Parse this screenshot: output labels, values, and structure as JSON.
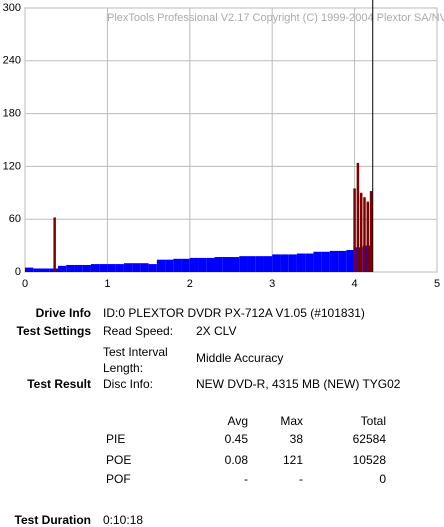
{
  "chart_data": {
    "type": "bar",
    "watermark": "PlexTools Professional V2.17 Copyright (C) 1999-2004 Plextor SA/NV",
    "xlim": [
      0,
      5
    ],
    "xticks": [
      0,
      1,
      2,
      3,
      4,
      5
    ],
    "ylim": [
      0,
      300
    ],
    "yticks": [
      0,
      60,
      120,
      180,
      240,
      300
    ],
    "grid": true,
    "end_line_x": 4.22,
    "series": [
      {
        "color": "#0000ff",
        "x": [
          0.05,
          0.15,
          0.25,
          0.35,
          0.45,
          0.55,
          0.65,
          0.75,
          0.85,
          0.95,
          1.05,
          1.15,
          1.25,
          1.35,
          1.45,
          1.55,
          1.65,
          1.75,
          1.85,
          1.95,
          2.05,
          2.15,
          2.25,
          2.35,
          2.45,
          2.55,
          2.65,
          2.75,
          2.85,
          2.95,
          3.05,
          3.15,
          3.25,
          3.35,
          3.45,
          3.55,
          3.65,
          3.75,
          3.85,
          3.95,
          4.05,
          4.15
        ],
        "values": [
          5,
          4,
          4,
          4,
          7,
          8,
          8,
          8,
          9,
          9,
          9,
          9,
          10,
          10,
          10,
          9,
          14,
          14,
          15,
          15,
          16,
          16,
          16,
          17,
          17,
          17,
          18,
          18,
          18,
          18,
          20,
          20,
          20,
          21,
          21,
          23,
          23,
          24,
          24,
          25,
          28,
          30
        ]
      },
      {
        "color": "#800000",
        "x": [
          0.36,
          4.0,
          4.04,
          4.08,
          4.12,
          4.16,
          4.2
        ],
        "values": [
          62,
          95,
          124,
          90,
          85,
          80,
          92
        ]
      }
    ]
  },
  "info": {
    "drive_label": "Drive Info",
    "drive_value": "ID:0 PLEXTOR DVDR PX-712A V1.05 (#101831)",
    "settings_label": "Test Settings",
    "settings": [
      [
        "Read Speed:",
        "2X CLV"
      ],
      [
        "Test Interval Length:",
        "Middle Accuracy"
      ]
    ],
    "result_label": "Test Result",
    "disc_label": "Disc Info:",
    "disc_value": "NEW DVD-R, 4315 MB (NEW) TYG02",
    "table_header": [
      "Avg",
      "Max",
      "Total"
    ],
    "table_rows": [
      [
        "PIE",
        0.45,
        38,
        62584
      ],
      [
        "POE",
        0.08,
        121,
        10528
      ],
      [
        "POF",
        "-",
        "-",
        0
      ]
    ],
    "duration_label": "Test Duration",
    "duration_value": "0:10:18"
  }
}
